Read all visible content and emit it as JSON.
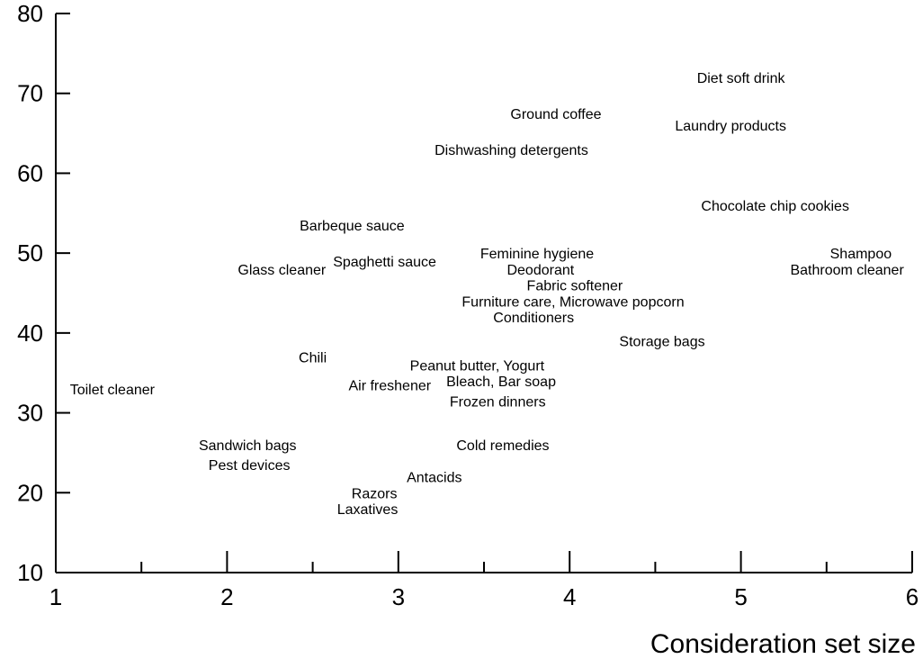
{
  "chart_data": {
    "type": "scatter",
    "title": "",
    "xlabel": "Consideration set size",
    "ylabel": "",
    "xlim": [
      1,
      6
    ],
    "ylim": [
      10,
      80
    ],
    "xticks": [
      1,
      2,
      3,
      4,
      5,
      6
    ],
    "yticks": [
      10,
      20,
      30,
      40,
      50,
      60,
      70,
      80
    ],
    "grid": false,
    "points": [
      {
        "label": "Diet soft drink",
        "x": 5.0,
        "y": 72
      },
      {
        "label": "Ground coffee",
        "x": 3.92,
        "y": 67.5
      },
      {
        "label": "Laundry products",
        "x": 4.94,
        "y": 66
      },
      {
        "label": "Dishwashing detergents",
        "x": 3.66,
        "y": 63
      },
      {
        "label": "Chocolate chip cookies",
        "x": 5.2,
        "y": 56
      },
      {
        "label": "Barbeque sauce",
        "x": 2.73,
        "y": 53.5
      },
      {
        "label": "Shampoo",
        "x": 5.7,
        "y": 50
      },
      {
        "label": "Bathroom cleaner",
        "x": 5.62,
        "y": 48
      },
      {
        "label": "Feminine hygiene",
        "x": 3.81,
        "y": 50
      },
      {
        "label": "Spaghetti sauce",
        "x": 2.92,
        "y": 49
      },
      {
        "label": "Deodorant",
        "x": 3.83,
        "y": 48
      },
      {
        "label": "Glass cleaner",
        "x": 2.32,
        "y": 48
      },
      {
        "label": "Fabric softener",
        "x": 4.03,
        "y": 46
      },
      {
        "label": "Furniture care, Microwave popcorn",
        "x": 4.02,
        "y": 44
      },
      {
        "label": "Conditioners",
        "x": 3.79,
        "y": 42
      },
      {
        "label": "Storage bags",
        "x": 4.54,
        "y": 39
      },
      {
        "label": "Chili",
        "x": 2.5,
        "y": 37
      },
      {
        "label": "Peanut butter, Yogurt",
        "x": 3.46,
        "y": 36
      },
      {
        "label": "Bleach, Bar soap",
        "x": 3.6,
        "y": 34
      },
      {
        "label": "Air freshener",
        "x": 2.95,
        "y": 33.5
      },
      {
        "label": "Toilet cleaner",
        "x": 1.33,
        "y": 33
      },
      {
        "label": "Frozen dinners",
        "x": 3.58,
        "y": 31.5
      },
      {
        "label": "Sandwich bags",
        "x": 2.12,
        "y": 26
      },
      {
        "label": "Cold remedies",
        "x": 3.61,
        "y": 26
      },
      {
        "label": "Pest devices",
        "x": 2.13,
        "y": 23.5
      },
      {
        "label": "Antacids",
        "x": 3.21,
        "y": 22
      },
      {
        "label": "Razors",
        "x": 2.86,
        "y": 20
      },
      {
        "label": "Laxatives",
        "x": 2.82,
        "y": 18
      }
    ]
  }
}
